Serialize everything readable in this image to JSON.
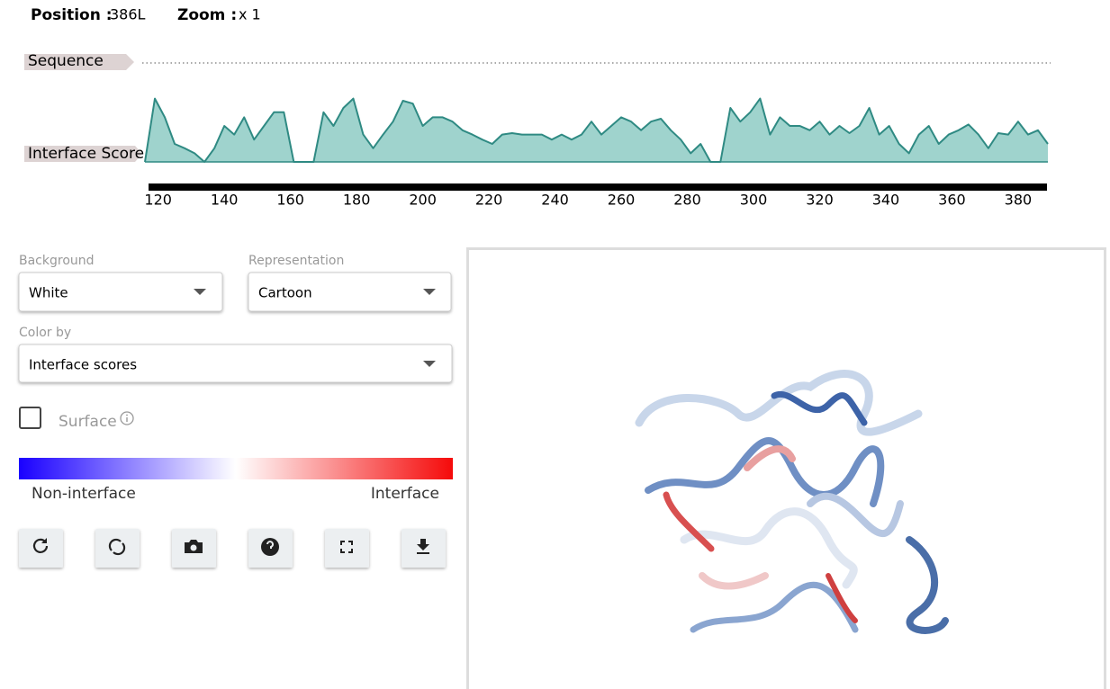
{
  "header": {
    "position_label": "Position :",
    "position_value": "386L",
    "zoom_label": "Zoom :",
    "zoom_value": "x 1"
  },
  "tracks": {
    "sequence_label": "Sequence",
    "score_label": "Interface Score"
  },
  "chart_data": {
    "type": "area",
    "x": [
      116,
      119,
      122,
      125,
      128,
      131,
      134,
      137,
      140,
      143,
      146,
      149,
      152,
      155,
      158,
      161,
      164,
      167,
      170,
      173,
      176,
      179,
      182,
      185,
      188,
      191,
      194,
      197,
      200,
      203,
      206,
      209,
      212,
      215,
      218,
      221,
      224,
      227,
      230,
      233,
      236,
      239,
      242,
      245,
      248,
      251,
      254,
      257,
      260,
      263,
      266,
      269,
      272,
      275,
      278,
      281,
      284,
      287,
      290,
      293,
      296,
      299,
      302,
      305,
      308,
      311,
      314,
      317,
      320,
      323,
      326,
      329,
      332,
      335,
      338,
      341,
      344,
      347,
      350,
      353,
      356,
      359,
      362,
      365,
      368,
      371,
      374,
      377,
      380,
      383,
      386,
      389
    ],
    "values": [
      0,
      0.88,
      0.62,
      0.25,
      0.19,
      0.12,
      0,
      0.19,
      0.5,
      0.38,
      0.62,
      0.31,
      0.5,
      0.69,
      0.69,
      0,
      0,
      0,
      0.69,
      0.5,
      0.75,
      0.88,
      0.38,
      0.19,
      0.38,
      0.56,
      0.85,
      0.81,
      0.5,
      0.62,
      0.62,
      0.56,
      0.44,
      0.38,
      0.31,
      0.25,
      0.38,
      0.4,
      0.38,
      0.38,
      0.38,
      0.31,
      0.38,
      0.31,
      0.38,
      0.56,
      0.38,
      0.5,
      0.62,
      0.56,
      0.44,
      0.56,
      0.6,
      0.44,
      0.31,
      0.12,
      0.25,
      0,
      0,
      0.75,
      0.56,
      0.69,
      0.88,
      0.38,
      0.62,
      0.5,
      0.5,
      0.44,
      0.56,
      0.38,
      0.5,
      0.4,
      0.5,
      0.75,
      0.38,
      0.5,
      0.25,
      0.12,
      0.38,
      0.5,
      0.25,
      0.38,
      0.44,
      0.52,
      0.38,
      0.19,
      0.4,
      0.38,
      0.56,
      0.38,
      0.44,
      0.25
    ],
    "xlim": [
      116,
      389
    ],
    "ylim": [
      0,
      1
    ],
    "xticks": [
      120,
      140,
      160,
      180,
      200,
      220,
      240,
      260,
      280,
      300,
      320,
      340,
      360,
      380
    ],
    "color": "#9fd3cd",
    "line_color": "#2f8a83"
  },
  "controls": {
    "background_label": "Background",
    "background_value": "White",
    "representation_label": "Representation",
    "representation_value": "Cartoon",
    "color_by_label": "Color by",
    "color_by_value": "Interface scores",
    "surface_label": "Surface"
  },
  "legend": {
    "low": "Non-interface",
    "high": "Interface"
  }
}
